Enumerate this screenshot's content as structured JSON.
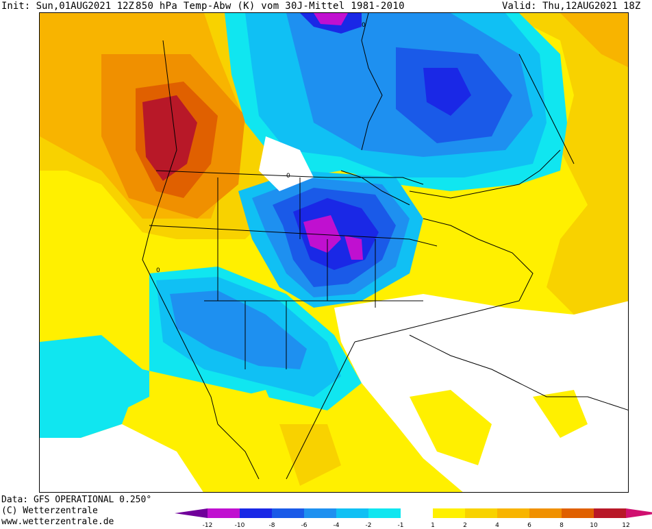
{
  "header": {
    "init": "Init: Sun,01AUG2021 12Z",
    "title": "850 hPa Temp-Abw (K) vom 30J-Mittel 1981-2010",
    "valid": "Valid: Thu,12AUG2021 18Z"
  },
  "credits": {
    "data": "Data: GFS OPERATIONAL 0.250°",
    "copyright": "(C) Wetterzentrale",
    "url": "www.wetterzentrale.de"
  },
  "colorbar": {
    "labels": [
      "-12",
      "-10",
      "-8",
      "-6",
      "-4",
      "-2",
      "-1",
      "1",
      "2",
      "4",
      "6",
      "8",
      "10",
      "12"
    ],
    "colors": [
      "#70009a",
      "#c010d0",
      "#1a28e6",
      "#1a5ae8",
      "#1e90f0",
      "#10c0f4",
      "#10e6f0",
      "#ffffff",
      "#fff000",
      "#f8d200",
      "#f8b400",
      "#f09000",
      "#e06000",
      "#b81828",
      "#d01070"
    ]
  },
  "map_contour_labels": [
    "0"
  ],
  "colors": {
    "background": "#ffffff",
    "text": "#000000"
  }
}
